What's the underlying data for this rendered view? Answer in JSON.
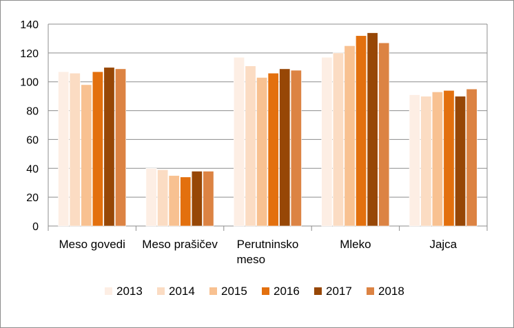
{
  "chart_data": {
    "type": "bar",
    "categories": [
      [
        "Meso govedi"
      ],
      [
        "Meso prašičev"
      ],
      [
        "Perutninsko",
        "meso"
      ],
      [
        "Mleko"
      ],
      [
        "Jajca"
      ]
    ],
    "series": [
      {
        "name": "2013",
        "color": "#fdeee4",
        "values": [
          107,
          40,
          117,
          117,
          91
        ]
      },
      {
        "name": "2014",
        "color": "#fbdcc3",
        "values": [
          106,
          39,
          111,
          120,
          90
        ]
      },
      {
        "name": "2015",
        "color": "#f8c191",
        "values": [
          98,
          35,
          103,
          125,
          93
        ]
      },
      {
        "name": "2016",
        "color": "#e3700e",
        "values": [
          107,
          34,
          106,
          132,
          94
        ]
      },
      {
        "name": "2017",
        "color": "#974706",
        "values": [
          110,
          38,
          109,
          134,
          90
        ]
      },
      {
        "name": "2018",
        "color": "#dc8343",
        "values": [
          109,
          38,
          108,
          127,
          95
        ]
      }
    ],
    "ylim": [
      0,
      140
    ],
    "yticks": [
      0,
      20,
      40,
      60,
      80,
      100,
      120,
      140
    ],
    "grid": true,
    "legend_position": "bottom"
  }
}
